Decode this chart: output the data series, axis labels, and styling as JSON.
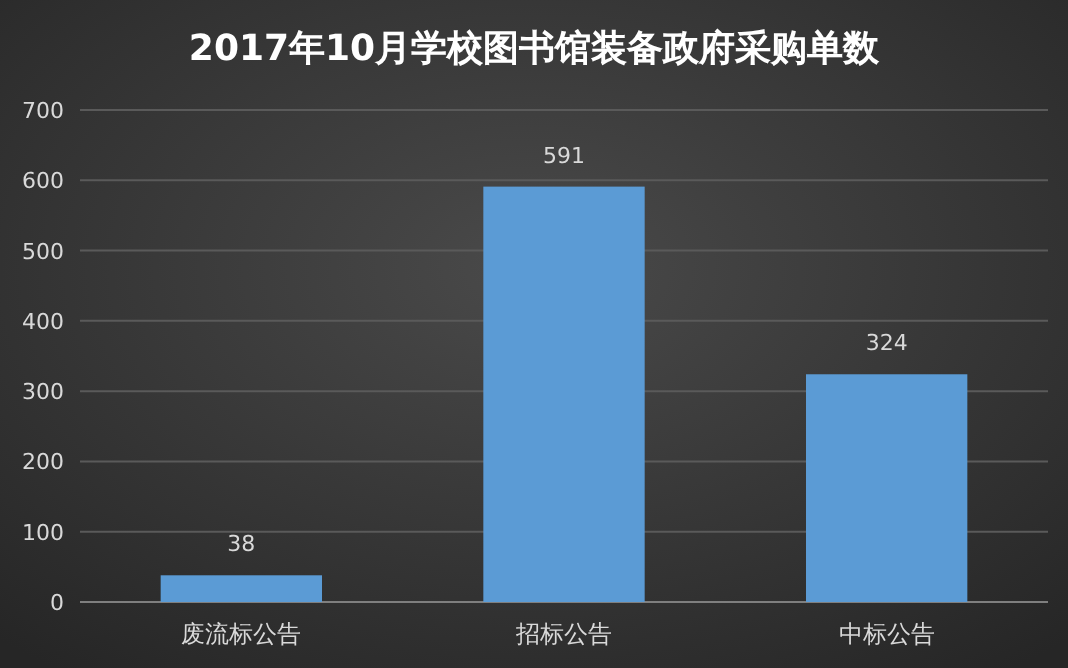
{
  "chart_data": {
    "type": "bar",
    "title": "2017年10月学校图书馆装备政府采购单数",
    "categories": [
      "废流标公告",
      "招标公告",
      "中标公告"
    ],
    "values": [
      38,
      591,
      324
    ],
    "color": "#5b9bd5",
    "ylim": [
      0,
      700
    ],
    "yticks": [
      0,
      100,
      200,
      300,
      400,
      500,
      600,
      700
    ],
    "grid": "y",
    "data_labels": true
  }
}
